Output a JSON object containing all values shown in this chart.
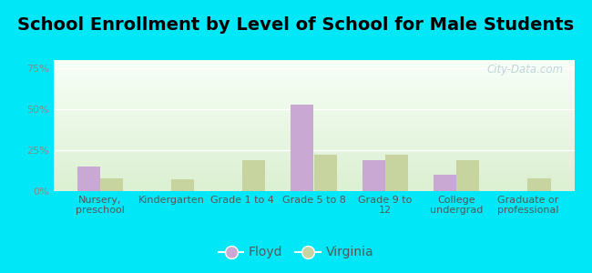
{
  "title": "School Enrollment by Level of School for Male Students",
  "categories": [
    "Nursery,\npreschool",
    "Kindergarten",
    "Grade 1 to 4",
    "Grade 5 to 8",
    "Grade 9 to\n12",
    "College\nundergrad",
    "Graduate or\nprofessional"
  ],
  "floyd_values": [
    15,
    0,
    0,
    53,
    19,
    10,
    0
  ],
  "virginia_values": [
    8,
    7,
    19,
    22,
    22,
    19,
    8
  ],
  "floyd_color": "#c9a8d4",
  "virginia_color": "#c8d4a0",
  "background_outer": "#00e8f8",
  "background_inner": "#f0f8ee",
  "ylabel_ticks": [
    "0%",
    "25%",
    "50%",
    "75%"
  ],
  "ytick_values": [
    0,
    25,
    50,
    75
  ],
  "ylim": [
    0,
    80
  ],
  "title_fontsize": 14,
  "tick_fontsize": 8,
  "legend_fontsize": 10,
  "bar_width": 0.32,
  "watermark": "City-Data.com"
}
